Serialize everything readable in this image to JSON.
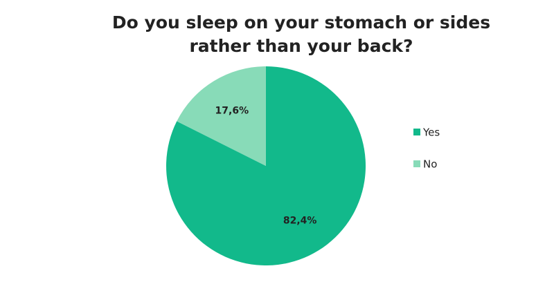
{
  "chart_data": {
    "type": "pie",
    "title": "Do you sleep on your stomach or sides rather than your back?",
    "categories": [
      "Yes",
      "No"
    ],
    "values": [
      82.4,
      17.6
    ],
    "value_labels": [
      "82,4%",
      "17,6%"
    ],
    "colors": [
      "#12b98b",
      "#88dbb8"
    ],
    "legend": "right"
  }
}
